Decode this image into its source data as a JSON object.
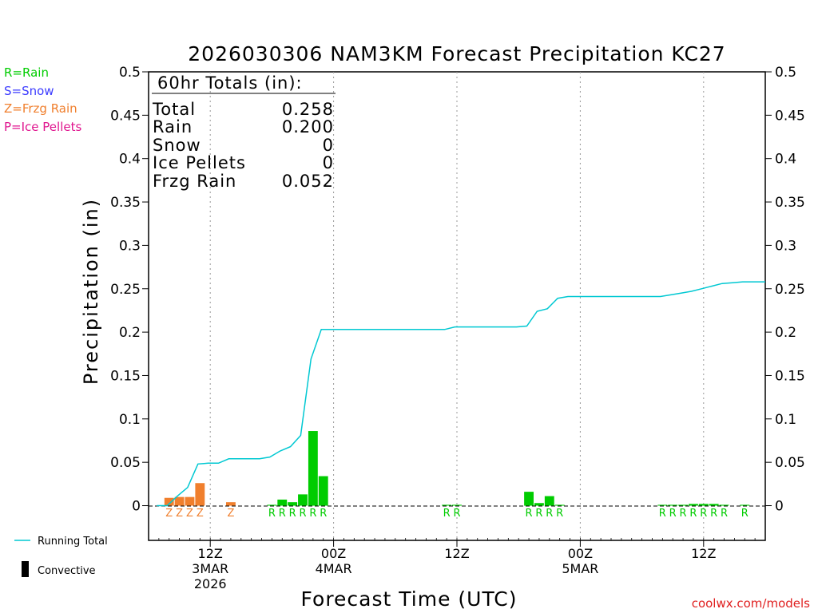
{
  "chart_data": {
    "type": "bar",
    "title": "2026030306 NAM3KM Forecast Precipitation KC27",
    "ylabel": "Precipitation (in)",
    "xlabel": "Forecast Time (UTC)",
    "ylim": [
      -0.04,
      0.5
    ],
    "yticks": [
      0,
      0.05,
      0.1,
      0.15,
      0.2,
      0.25,
      0.3,
      0.35,
      0.4,
      0.45,
      0.5
    ],
    "ytick_labels": [
      "0",
      "0.05",
      "0.1",
      "0.15",
      "0.2",
      "0.25",
      "0.3",
      "0.35",
      "0.4",
      "0.45",
      "0.5"
    ],
    "x_range_hours": [
      0,
      60
    ],
    "x_ticks": [
      {
        "hour": 6,
        "lines": [
          "12Z",
          "3MAR",
          "2026"
        ]
      },
      {
        "hour": 18,
        "lines": [
          "00Z",
          "4MAR"
        ]
      },
      {
        "hour": 30,
        "lines": [
          "12Z"
        ]
      },
      {
        "hour": 42,
        "lines": [
          "00Z",
          "5MAR"
        ]
      },
      {
        "hour": 54,
        "lines": [
          "12Z"
        ]
      }
    ],
    "grid": "vertical-dotted",
    "legend": {
      "position": "top-left",
      "entries": [
        {
          "label": "R=Rain",
          "color": "#00cc00"
        },
        {
          "label": "S=Snow",
          "color": "#3c3cff"
        },
        {
          "label": "Z=Frzg Rain",
          "color": "#f07f2d"
        },
        {
          "label": "P=Ice Pellets",
          "color": "#e0168f"
        }
      ]
    },
    "bottom_legend": [
      {
        "label": "Running Total",
        "color": "#00c8d2",
        "kind": "line"
      },
      {
        "label": "Convective",
        "color": "#000000",
        "kind": "bar"
      }
    ],
    "totals": {
      "header": "60hr Totals (in):",
      "rows": [
        {
          "label": "Total",
          "value": "0.258"
        },
        {
          "label": "Rain",
          "value": "0.200"
        },
        {
          "label": "Snow",
          "value": "0"
        },
        {
          "label": "Ice Pellets",
          "value": "0"
        },
        {
          "label": "Frzg Rain",
          "value": "0.052"
        }
      ]
    },
    "hourly_bars": [
      {
        "hour": 2,
        "value": 0.009,
        "type": "Z"
      },
      {
        "hour": 3,
        "value": 0.01,
        "type": "Z"
      },
      {
        "hour": 4,
        "value": 0.01,
        "type": "Z"
      },
      {
        "hour": 5,
        "value": 0.026,
        "type": "Z"
      },
      {
        "hour": 8,
        "value": 0.004,
        "type": "Z"
      },
      {
        "hour": 12,
        "value": 0.001,
        "type": "R"
      },
      {
        "hour": 13,
        "value": 0.007,
        "type": "R"
      },
      {
        "hour": 14,
        "value": 0.004,
        "type": "R"
      },
      {
        "hour": 15,
        "value": 0.013,
        "type": "R"
      },
      {
        "hour": 16,
        "value": 0.086,
        "type": "R"
      },
      {
        "hour": 17,
        "value": 0.034,
        "type": "R"
      },
      {
        "hour": 29,
        "value": 0.001,
        "type": "R"
      },
      {
        "hour": 30,
        "value": 0.001,
        "type": "R"
      },
      {
        "hour": 37,
        "value": 0.016,
        "type": "R"
      },
      {
        "hour": 38,
        "value": 0.003,
        "type": "R"
      },
      {
        "hour": 39,
        "value": 0.011,
        "type": "R"
      },
      {
        "hour": 40,
        "value": 0.001,
        "type": "R"
      },
      {
        "hour": 50,
        "value": 0.001,
        "type": "R"
      },
      {
        "hour": 51,
        "value": 0.001,
        "type": "R"
      },
      {
        "hour": 52,
        "value": 0.001,
        "type": "R"
      },
      {
        "hour": 53,
        "value": 0.002,
        "type": "R"
      },
      {
        "hour": 54,
        "value": 0.002,
        "type": "R"
      },
      {
        "hour": 55,
        "value": 0.002,
        "type": "R"
      },
      {
        "hour": 56,
        "value": 0.001,
        "type": "R"
      },
      {
        "hour": 58,
        "value": 0.001,
        "type": "R"
      }
    ],
    "running_total": [
      [
        0.8,
        0
      ],
      [
        1.8,
        0
      ],
      [
        2.8,
        0.011
      ],
      [
        3.8,
        0.021
      ],
      [
        4.8,
        0.048
      ],
      [
        5.8,
        0.049
      ],
      [
        6.8,
        0.049
      ],
      [
        7.8,
        0.054
      ],
      [
        8.8,
        0.054
      ],
      [
        9.8,
        0.054
      ],
      [
        10.8,
        0.054
      ],
      [
        11.8,
        0.056
      ],
      [
        12.8,
        0.063
      ],
      [
        13.8,
        0.068
      ],
      [
        14.8,
        0.081
      ],
      [
        15.8,
        0.169
      ],
      [
        16.8,
        0.203
      ],
      [
        17.8,
        0.203
      ],
      [
        28.8,
        0.203
      ],
      [
        29.8,
        0.206
      ],
      [
        35.8,
        0.206
      ],
      [
        36.8,
        0.207
      ],
      [
        37.8,
        0.224
      ],
      [
        38.8,
        0.227
      ],
      [
        39.8,
        0.239
      ],
      [
        40.8,
        0.241
      ],
      [
        41.8,
        0.241
      ],
      [
        49.8,
        0.241
      ],
      [
        50.8,
        0.243
      ],
      [
        51.8,
        0.245
      ],
      [
        52.8,
        0.247
      ],
      [
        53.8,
        0.25
      ],
      [
        54.8,
        0.253
      ],
      [
        55.8,
        0.256
      ],
      [
        56.8,
        0.257
      ],
      [
        57.8,
        0.258
      ],
      [
        60,
        0.258
      ]
    ],
    "type_colors": {
      "R": "#00cc00",
      "S": "#3c3cff",
      "Z": "#f07f2d",
      "P": "#e0168f"
    },
    "running_total_color": "#00c8d2",
    "credit": "coolwx.com/models"
  }
}
